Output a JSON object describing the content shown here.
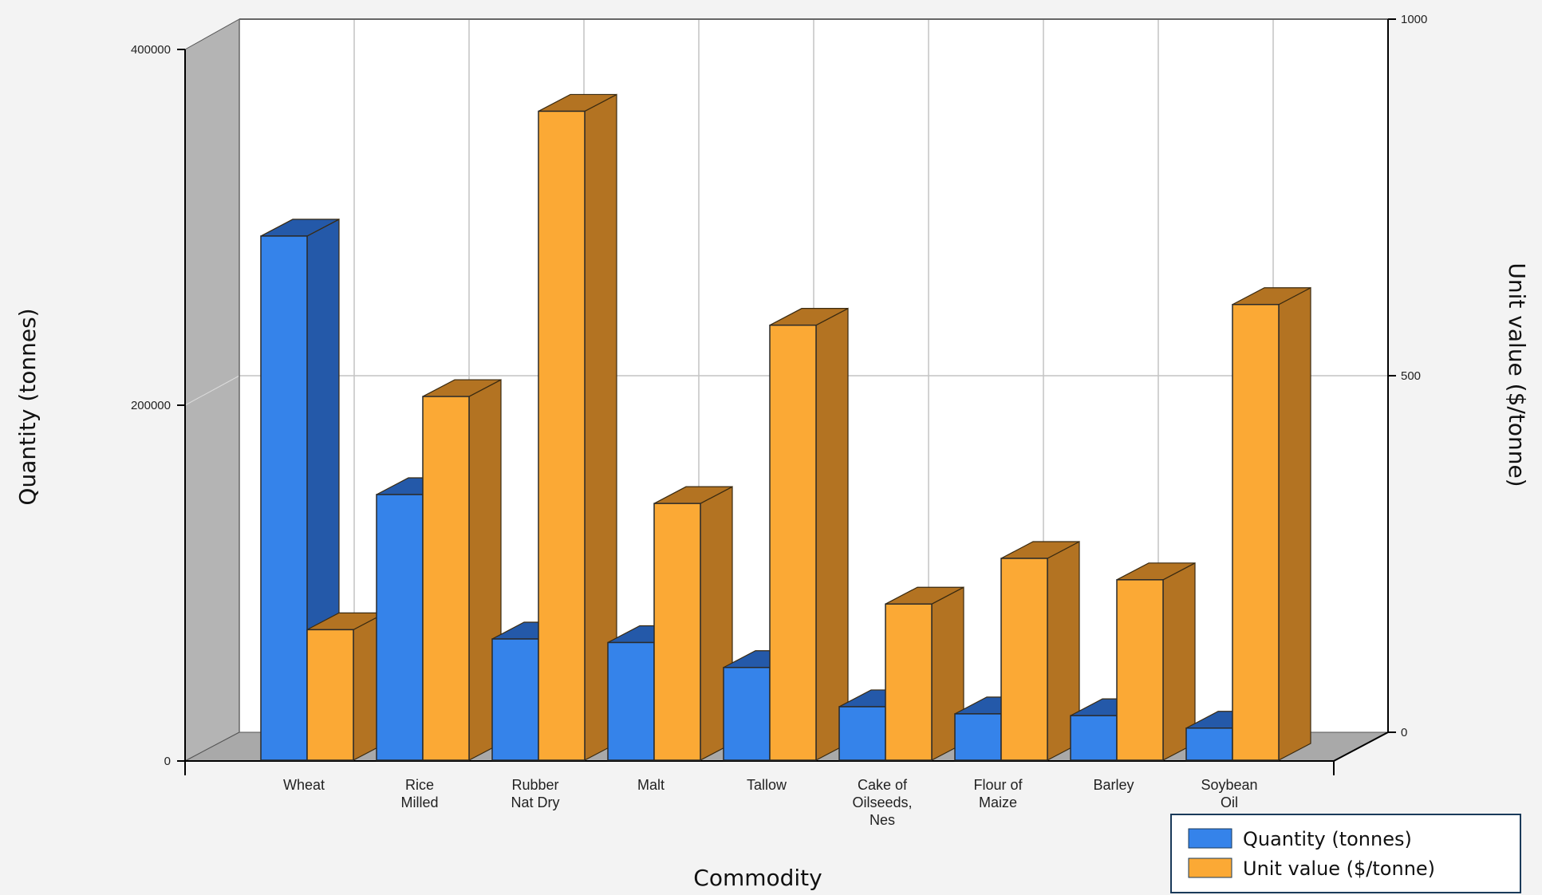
{
  "chart_data": {
    "type": "bar",
    "title": "",
    "xlabel": "Commodity",
    "ylabel": "Quantity (tonnes)",
    "y2label": "Unit value ($/tonne)",
    "categories": [
      "Wheat",
      "Rice\nMilled",
      "Rubber\nNat Dry",
      "Malt",
      "Tallow",
      "Cake of\nOilseeds,\nNes",
      "Flour of\nMaize",
      "Barley",
      "Soybean\nOil"
    ],
    "series": [
      {
        "name": "Quantity (tonnes)",
        "axis": "left",
        "color": "#3583ea",
        "side_color": "#2459a9",
        "values": [
          294000,
          149000,
          68000,
          66000,
          52000,
          30000,
          26000,
          25000,
          18000
        ]
      },
      {
        "name": "Unit value ($/tonne)",
        "axis": "right",
        "color": "#fba935",
        "side_color": "#b37322",
        "values": [
          183,
          510,
          910,
          360,
          610,
          219,
          283,
          253,
          639
        ]
      }
    ],
    "ylim": [
      0,
      400000
    ],
    "y2lim": [
      0,
      1000
    ],
    "yticks": [
      "0",
      "200000",
      "400000"
    ],
    "y2ticks": [
      "0",
      "500",
      "1000"
    ],
    "grid": true,
    "legend_position": "bottom-right",
    "three_d": true
  }
}
